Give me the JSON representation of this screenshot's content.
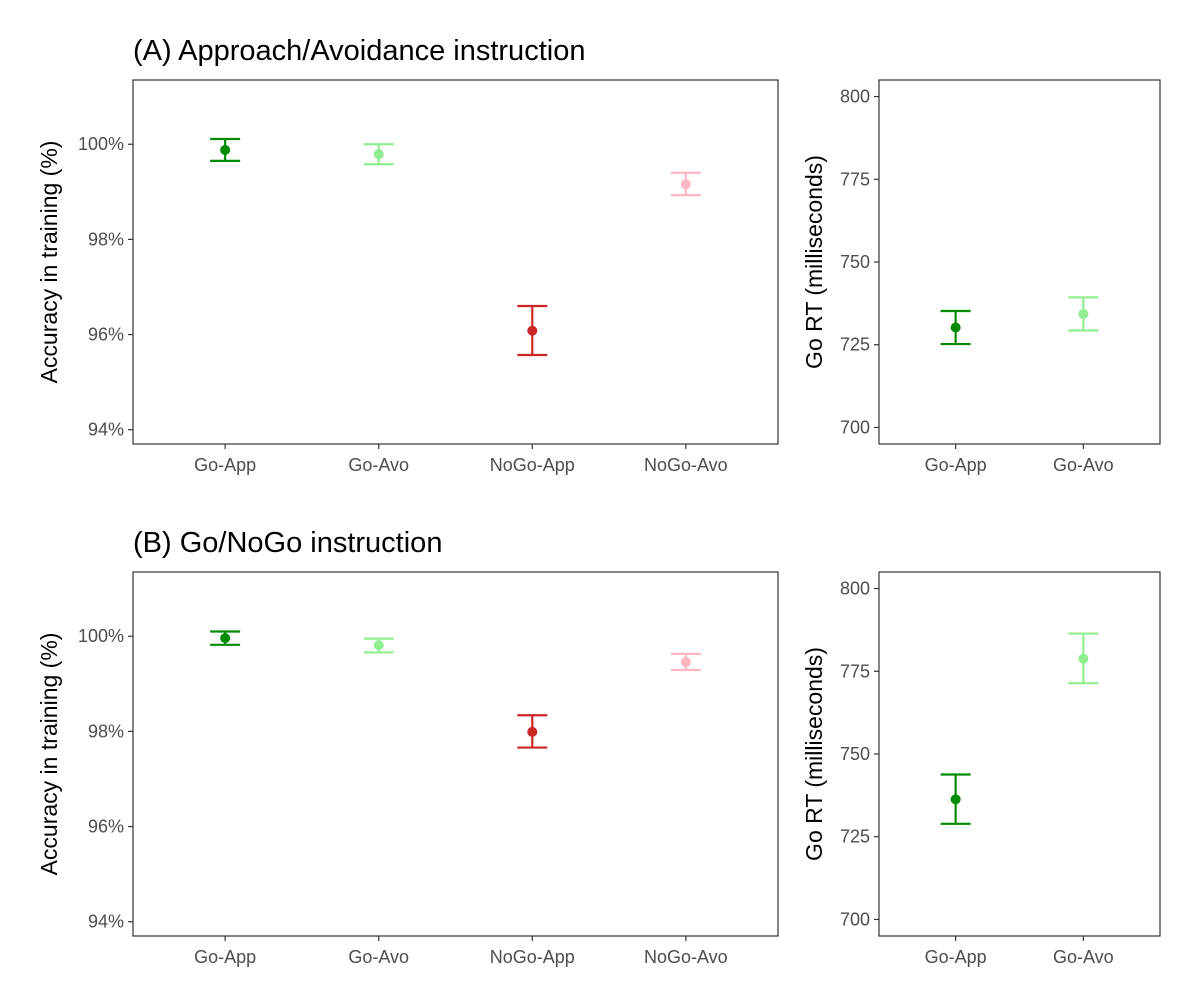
{
  "colors": {
    "Go-App": "#008B00",
    "Go-Avo": "#90EE90",
    "NoGo-App": "#CD2626",
    "NoGo-Avo": "#FFB6C1"
  },
  "rows": [
    {
      "title": "(A) Approach/Avoidance instruction"
    },
    {
      "title": "(B) Go/NoGo instruction"
    }
  ],
  "chart_data": [
    {
      "id": "A-accuracy",
      "type": "pointrange",
      "ylabel": "Accuracy in training (%)",
      "xlabel": "",
      "categories": [
        "Go-App",
        "Go-Avo",
        "NoGo-App",
        "NoGo-Avo"
      ],
      "values": [
        99.88,
        99.79,
        96.08,
        99.16
      ],
      "lower": [
        99.65,
        99.58,
        95.57,
        98.93
      ],
      "upper": [
        100.11,
        100.0,
        96.6,
        99.4
      ],
      "ylim": [
        93.7,
        101.35
      ],
      "yticks": [
        94,
        96,
        98,
        100
      ],
      "ytick_labels": [
        "94%",
        "96%",
        "98%",
        "100%"
      ]
    },
    {
      "id": "A-rt",
      "type": "pointrange",
      "ylabel": "Go RT (milliseconds)",
      "xlabel": "",
      "categories": [
        "Go-App",
        "Go-Avo"
      ],
      "values": [
        730.2,
        734.3
      ],
      "lower": [
        725.2,
        729.3
      ],
      "upper": [
        735.2,
        739.3
      ],
      "ylim": [
        695,
        805
      ],
      "yticks": [
        700,
        725,
        750,
        775,
        800
      ],
      "ytick_labels": [
        "700",
        "725",
        "750",
        "775",
        "800"
      ]
    },
    {
      "id": "B-accuracy",
      "type": "pointrange",
      "ylabel": "Accuracy in training (%)",
      "xlabel": "",
      "categories": [
        "Go-App",
        "Go-Avo",
        "NoGo-App",
        "NoGo-Avo"
      ],
      "values": [
        99.96,
        99.81,
        97.99,
        99.46
      ],
      "lower": [
        99.82,
        99.66,
        97.66,
        99.29
      ],
      "upper": [
        100.1,
        99.95,
        98.34,
        99.63
      ],
      "ylim": [
        93.7,
        101.35
      ],
      "yticks": [
        94,
        96,
        98,
        100
      ],
      "ytick_labels": [
        "94%",
        "96%",
        "98%",
        "100%"
      ]
    },
    {
      "id": "B-rt",
      "type": "pointrange",
      "ylabel": "Go RT (milliseconds)",
      "xlabel": "",
      "categories": [
        "Go-App",
        "Go-Avo"
      ],
      "values": [
        736.3,
        778.8
      ],
      "lower": [
        728.9,
        771.4
      ],
      "upper": [
        743.8,
        786.4
      ],
      "ylim": [
        695,
        805
      ],
      "yticks": [
        700,
        725,
        750,
        775,
        800
      ],
      "ytick_labels": [
        "700",
        "725",
        "750",
        "775",
        "800"
      ]
    }
  ]
}
